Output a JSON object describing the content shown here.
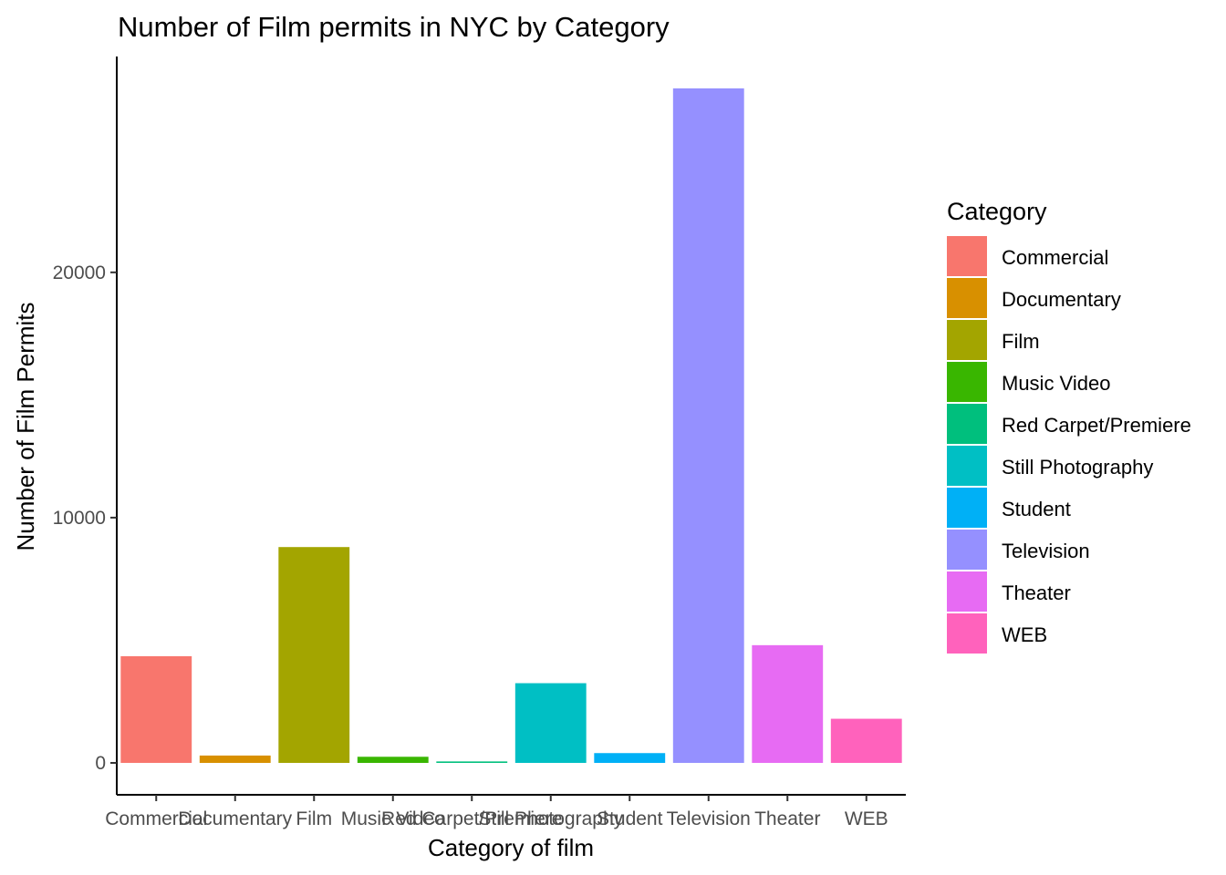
{
  "chart_data": {
    "type": "bar",
    "title": "Number of Film permits in NYC by Category",
    "xlabel": "Category of film",
    "ylabel": "Number of Film Permits",
    "categories": [
      "Commercial",
      "Documentary",
      "Film",
      "Music Video",
      "Red Carpet/Premiere",
      "Still Photography",
      "Student",
      "Television",
      "Theater",
      "WEB"
    ],
    "values": [
      4350,
      300,
      8800,
      250,
      60,
      3250,
      400,
      27500,
      4800,
      1800
    ],
    "colors": [
      "#F8766D",
      "#D89000",
      "#A3A500",
      "#39B600",
      "#00BF7D",
      "#00BFC4",
      "#00B0F6",
      "#9590FF",
      "#E76BF3",
      "#FF62BC"
    ],
    "yticks": [
      0,
      10000,
      20000
    ],
    "ylim": [
      -1300,
      28800
    ],
    "grid": false,
    "legend": {
      "title": "Category",
      "position": "right"
    }
  }
}
